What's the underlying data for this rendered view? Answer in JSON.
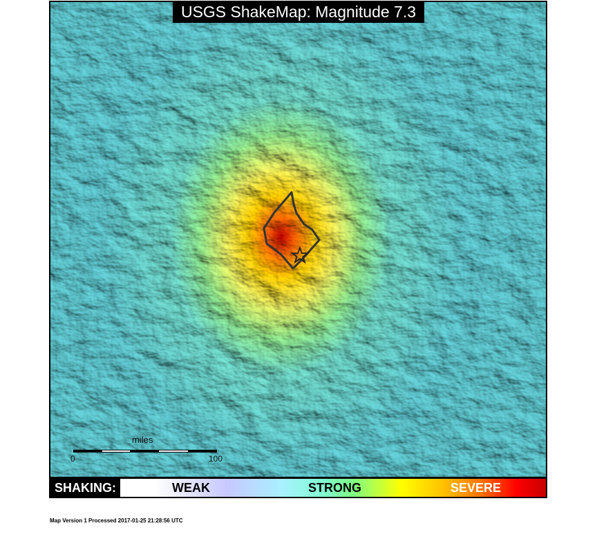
{
  "title": "USGS ShakeMap: Magnitude 7.3",
  "scale_bar": {
    "unit": "miles",
    "start": "0",
    "end": "100"
  },
  "legend": {
    "label": "SHAKING:",
    "weak": "WEAK",
    "strong": "STRONG",
    "severe": "SEVERE"
  },
  "footer": "Map Version 1 Processed 2017-01-25 21:28:56 UTC",
  "colors": {
    "weak": "#a8f0ff",
    "strong": "#ffff00",
    "severe": "#c80000"
  },
  "icons": {
    "epicenter": "star-icon",
    "fault": "fault-outline"
  }
}
